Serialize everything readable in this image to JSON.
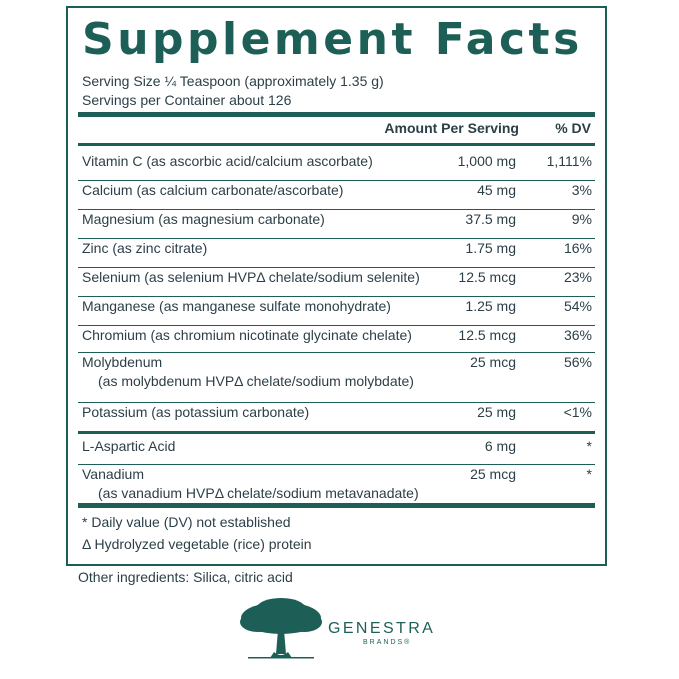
{
  "title": "Supplement Facts",
  "serving_size": "Serving Size ¼ Teaspoon (approximately 1.35 g)",
  "servings_per_container": "Servings per Container about 126",
  "header": {
    "amount": "Amount Per Serving",
    "dv": "% DV"
  },
  "rows": [
    {
      "name": "Vitamin C (as ascorbic acid/calcium ascorbate)",
      "sub": "",
      "amount": "1,000 mg",
      "dv": "1,111%"
    },
    {
      "name": "Calcium (as calcium carbonate/ascorbate)",
      "sub": "",
      "amount": "45 mg",
      "dv": "3%"
    },
    {
      "name": "Magnesium (as magnesium carbonate)",
      "sub": "",
      "amount": "37.5 mg",
      "dv": "9%"
    },
    {
      "name": "Zinc (as zinc citrate)",
      "sub": "",
      "amount": "1.75 mg",
      "dv": "16%"
    },
    {
      "name": "Selenium (as selenium HVPΔ chelate/sodium selenite)",
      "sub": "",
      "amount": "12.5 mcg",
      "dv": "23%"
    },
    {
      "name": "Manganese (as manganese sulfate monohydrate)",
      "sub": "",
      "amount": "1.25 mg",
      "dv": "54%"
    },
    {
      "name": "Chromium (as chromium nicotinate glycinate chelate)",
      "sub": "",
      "amount": "12.5 mcg",
      "dv": "36%"
    },
    {
      "name": "Molybdenum",
      "sub": "(as molybdenum HVPΔ chelate/sodium molybdate)",
      "amount": "25 mcg",
      "dv": "56%"
    },
    {
      "name": "Potassium (as potassium carbonate)",
      "sub": "",
      "amount": "25 mg",
      "dv": "<1%"
    },
    {
      "name": "L-Aspartic Acid",
      "sub": "",
      "amount": "6 mg",
      "dv": "*"
    },
    {
      "name": "Vanadium",
      "sub": "(as vanadium HVPΔ chelate/sodium metavanadate)",
      "amount": "25 mcg",
      "dv": "*"
    }
  ],
  "footnotes": [
    "* Daily value (DV) not established",
    "Δ Hydrolyzed vegetable (rice) protein"
  ],
  "other_ingredients": "Other ingredients: Silica, citric acid",
  "brand": {
    "name": "GENESTRA",
    "sub": "BRANDS®"
  },
  "colors": {
    "accent": "#1d5f57",
    "text": "#2c3f48"
  }
}
